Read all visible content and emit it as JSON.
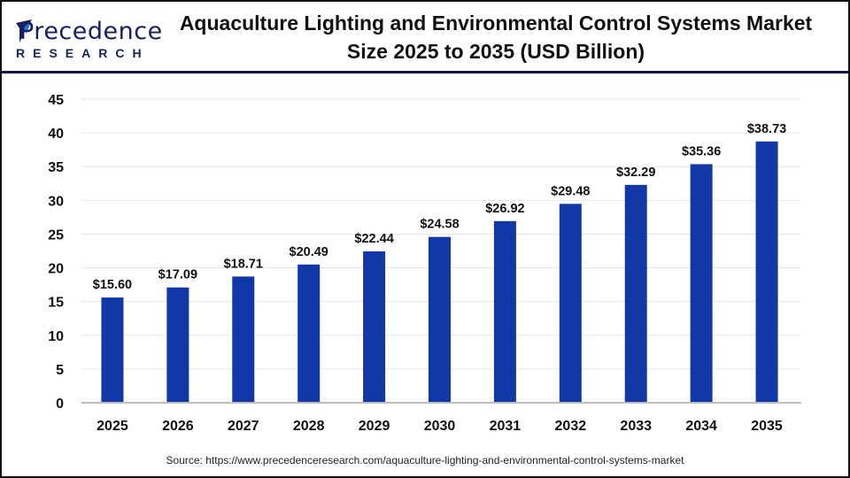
{
  "logo": {
    "main": "Precedence",
    "sub": "RESEARCH"
  },
  "title_line1": "Aquaculture Lighting and Environmental Control Systems Market",
  "title_line2": "Size 2025 to 2035 (USD Billion)",
  "source": "Source: https://www.precedenceresearch.com/aquaculture-lighting-and-environmental-control-systems-market",
  "colors": {
    "bar": "#1238a8",
    "header_line": "#14163f",
    "grid": "#e6e6e6",
    "axis": "#bdbdbd"
  },
  "chart_data": {
    "type": "bar",
    "title": "Aquaculture Lighting and Environmental Control Systems Market Size 2025 to 2035 (USD Billion)",
    "categories": [
      "2025",
      "2026",
      "2027",
      "2028",
      "2029",
      "2030",
      "2031",
      "2032",
      "2033",
      "2034",
      "2035"
    ],
    "values": [
      15.6,
      17.09,
      18.71,
      20.49,
      22.44,
      24.58,
      26.92,
      29.48,
      32.29,
      35.36,
      38.73
    ],
    "labels": [
      "$15.60",
      "$17.09",
      "$18.71",
      "$20.49",
      "$22.44",
      "$24.58",
      "$26.92",
      "$29.48",
      "$32.29",
      "$35.36",
      "$38.73"
    ],
    "yticks": [
      "0",
      "5",
      "10",
      "15",
      "20",
      "25",
      "30",
      "35",
      "40",
      "45"
    ],
    "ylim": [
      0,
      45
    ],
    "xlabel": "",
    "ylabel": "",
    "grid": true
  }
}
